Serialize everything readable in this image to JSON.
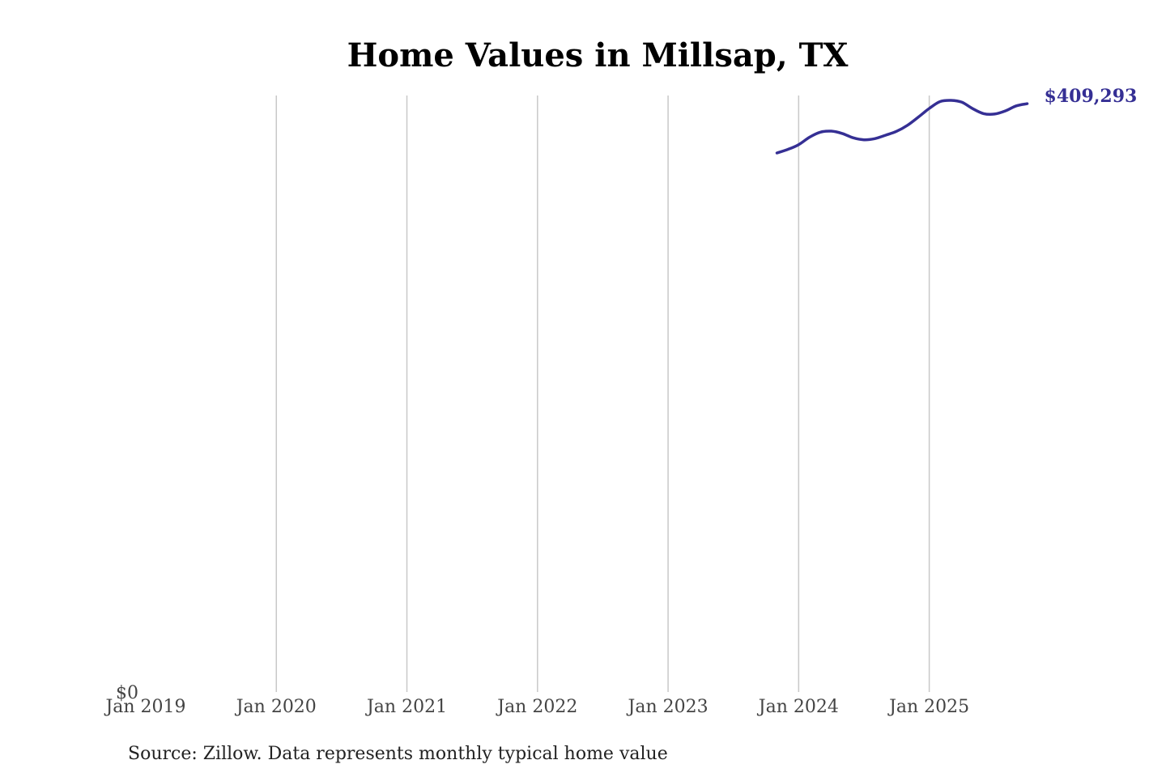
{
  "chart_data": {
    "type": "line",
    "title": "Home Values in Millsap, TX",
    "xlabel": "",
    "ylabel": "",
    "x_tick_labels": [
      "Jan 2019",
      "Jan 2020",
      "Jan 2021",
      "Jan 2022",
      "Jan 2023",
      "Jan 2024",
      "Jan 2025"
    ],
    "x_tick_dates": [
      "2019-01",
      "2020-01",
      "2021-01",
      "2022-01",
      "2023-01",
      "2024-01",
      "2025-01"
    ],
    "y_tick_labels": [
      "$0"
    ],
    "y_tick_values": [
      0
    ],
    "xlim": [
      "2019-01",
      "2025-11"
    ],
    "ylim": [
      0,
      415000
    ],
    "grid": "vertical",
    "series": [
      {
        "color": "#352f94",
        "end_label": "$409,293",
        "points": [
          {
            "x": "2023-11",
            "y": 375000
          },
          {
            "x": "2023-12",
            "y": 377500
          },
          {
            "x": "2024-01",
            "y": 380800
          },
          {
            "x": "2024-02",
            "y": 386000
          },
          {
            "x": "2024-03",
            "y": 389500
          },
          {
            "x": "2024-04",
            "y": 390200
          },
          {
            "x": "2024-05",
            "y": 388600
          },
          {
            "x": "2024-06",
            "y": 385600
          },
          {
            "x": "2024-07",
            "y": 384200
          },
          {
            "x": "2024-08",
            "y": 385000
          },
          {
            "x": "2024-09",
            "y": 387400
          },
          {
            "x": "2024-10",
            "y": 390100
          },
          {
            "x": "2024-11",
            "y": 394300
          },
          {
            "x": "2024-12",
            "y": 400000
          },
          {
            "x": "2025-01",
            "y": 406000
          },
          {
            "x": "2025-02",
            "y": 410800
          },
          {
            "x": "2025-03",
            "y": 411600
          },
          {
            "x": "2025-04",
            "y": 410300
          },
          {
            "x": "2025-05",
            "y": 405800
          },
          {
            "x": "2025-06",
            "y": 402400
          },
          {
            "x": "2025-07",
            "y": 402100
          },
          {
            "x": "2025-08",
            "y": 404300
          },
          {
            "x": "2025-09",
            "y": 407800
          },
          {
            "x": "2025-10",
            "y": 409293
          }
        ]
      }
    ]
  },
  "source_note": "Source: Zillow. Data represents monthly typical home value"
}
